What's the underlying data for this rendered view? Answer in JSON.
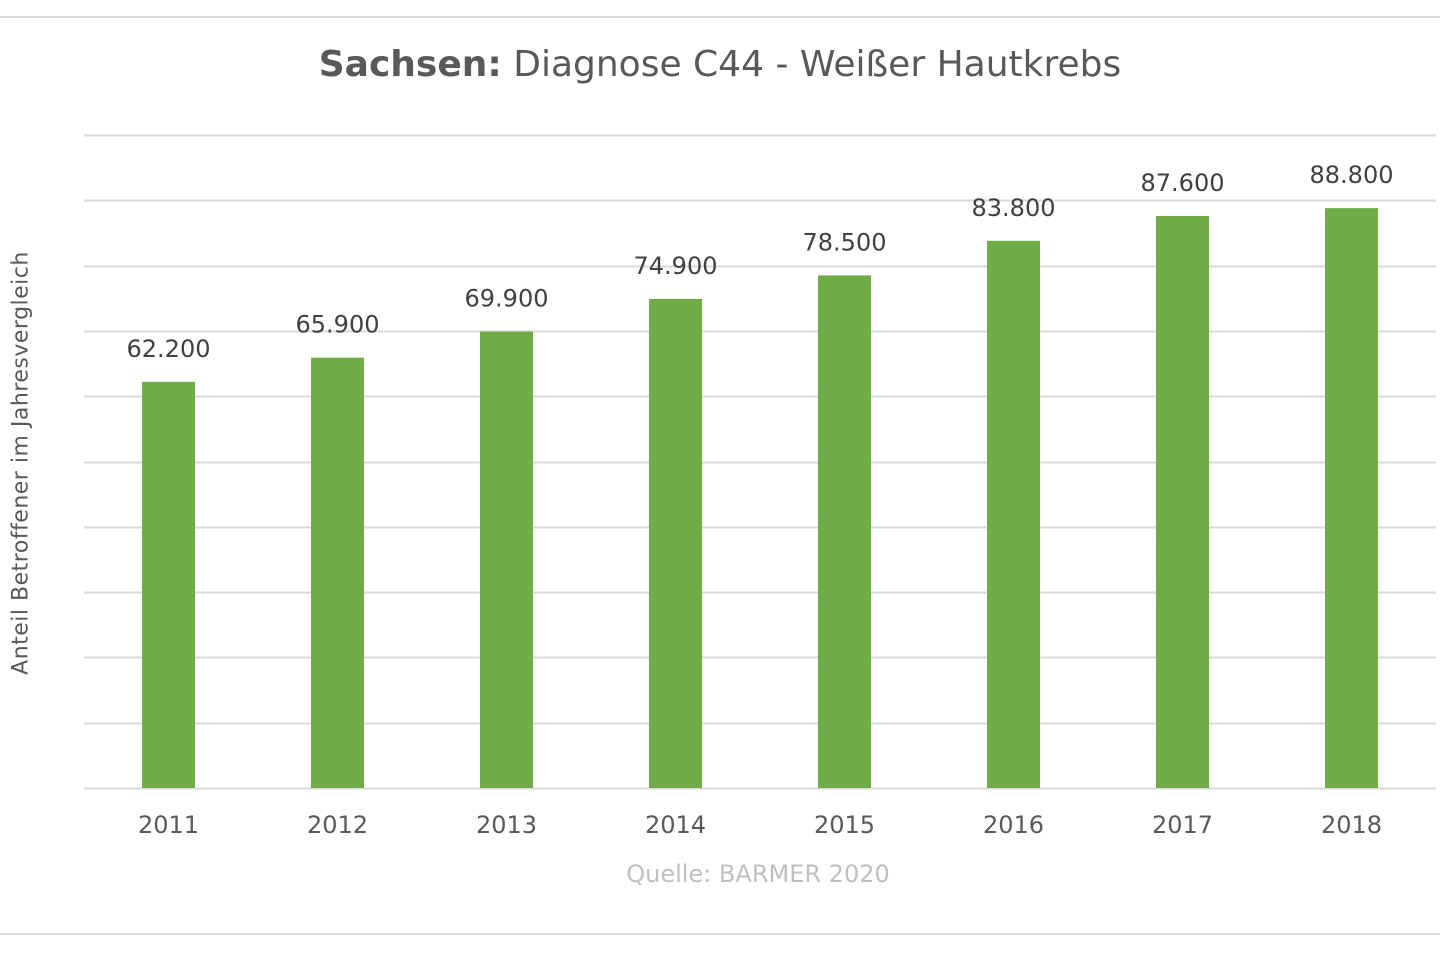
{
  "chart_data": {
    "type": "bar",
    "title_bold": "Sachsen:",
    "title_rest": " Diagnose C44 - Weißer Hautkrebs",
    "xlabel": "",
    "ylabel": "Anteil Betroffener im Jahresvergleich",
    "source": "Quelle: BARMER 2020",
    "categories": [
      "2011",
      "2012",
      "2013",
      "2014",
      "2015",
      "2016",
      "2017",
      "2018"
    ],
    "values": [
      62200,
      65900,
      69900,
      74900,
      78500,
      83800,
      87600,
      88800
    ],
    "value_labels": [
      "62.200",
      "65.900",
      "69.900",
      "74.900",
      "78.500",
      "83.800",
      "87.600",
      "88.800"
    ],
    "ylim": [
      0,
      100000
    ],
    "y_axis_labels_visible": false,
    "grid": true,
    "legend": "none",
    "bar_color": "#70ad47",
    "grid_color": "#d9d9d9"
  }
}
